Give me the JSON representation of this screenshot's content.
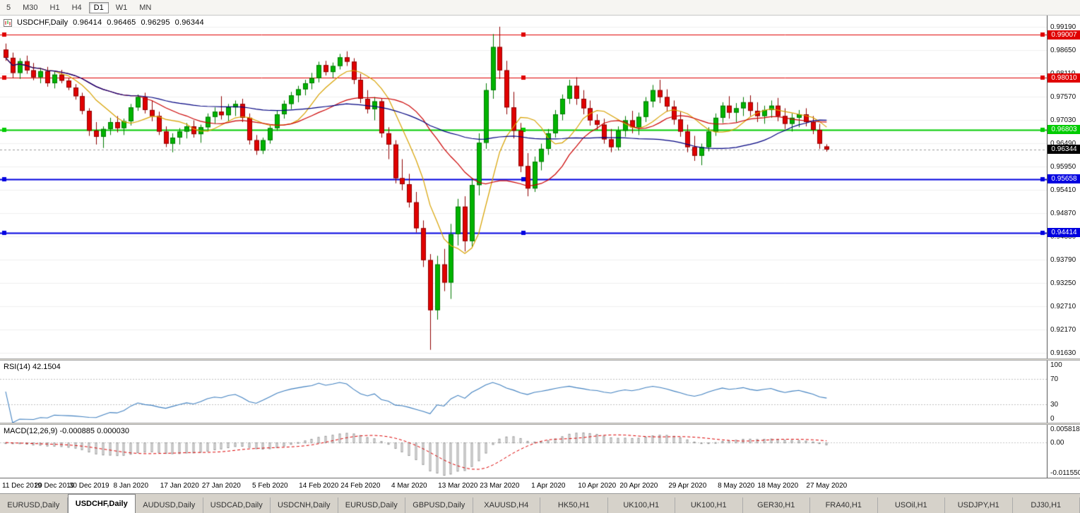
{
  "toolbar": {
    "timeframes": [
      "5",
      "M30",
      "H1",
      "H4",
      "D1",
      "W1",
      "MN"
    ],
    "active_timeframe": "D1"
  },
  "chart": {
    "symbol_title": "USDCHF,Daily",
    "ohlc": {
      "open": "0.96414",
      "high": "0.96465",
      "low": "0.96295",
      "close": "0.96344"
    }
  },
  "price_axis": {
    "ticks": [
      "0.99190",
      "0.98650",
      "0.98110",
      "0.97570",
      "0.97030",
      "0.96490",
      "0.95950",
      "0.95410",
      "0.94870",
      "0.94330",
      "0.93790",
      "0.93250",
      "0.92710",
      "0.92170",
      "0.91630"
    ]
  },
  "levels": {
    "lines": [
      {
        "price": 0.99007,
        "label": "0.99007",
        "color": "#e00000",
        "width": 1
      },
      {
        "price": 0.9801,
        "label": "0.98010",
        "color": "#e00000",
        "width": 1
      },
      {
        "price": 0.96803,
        "label": "0.96803",
        "color": "#00cc00",
        "width": 2
      },
      {
        "price": 0.95658,
        "label": "0.95658",
        "color": "#0000e0",
        "width": 2
      },
      {
        "price": 0.94414,
        "label": "0.94414",
        "color": "#0000e0",
        "width": 2
      }
    ],
    "current": {
      "price": 0.96344,
      "label": "0.96344",
      "color": "#000000"
    }
  },
  "rsi_panel": {
    "label": "RSI(14) 42.1504",
    "period": 14,
    "levels": [
      70,
      30
    ],
    "axis": [
      "100",
      "70",
      "30",
      "0"
    ],
    "line_color": "#4080c0"
  },
  "macd_panel": {
    "label": "MACD(12,26,9) -0.000885 0.000030",
    "fast": 12,
    "slow": 26,
    "signal": 9,
    "axis_top": "0.005818",
    "axis_zero": "0.00",
    "axis_bottom": "-0.011550",
    "scale_max": 0.005818,
    "scale_min": -0.01155,
    "hist_color": "#949494",
    "signal_color": "#dd0000"
  },
  "time_axis": {
    "labels": [
      {
        "text": "11 Dec 2019",
        "index": 0
      },
      {
        "text": "20 Dec 2019",
        "index": 7
      },
      {
        "text": "30 Dec 2019",
        "index": 12
      },
      {
        "text": "8 Jan 2020",
        "index": 18
      },
      {
        "text": "17 Jan 2020",
        "index": 25
      },
      {
        "text": "27 Jan 2020",
        "index": 31
      },
      {
        "text": "5 Feb 2020",
        "index": 38
      },
      {
        "text": "14 Feb 2020",
        "index": 45
      },
      {
        "text": "24 Feb 2020",
        "index": 51
      },
      {
        "text": "4 Mar 2020",
        "index": 58
      },
      {
        "text": "13 Mar 2020",
        "index": 65
      },
      {
        "text": "23 Mar 2020",
        "index": 71
      },
      {
        "text": "1 Apr 2020",
        "index": 78
      },
      {
        "text": "10 Apr 2020",
        "index": 85
      },
      {
        "text": "20 Apr 2020",
        "index": 91
      },
      {
        "text": "29 Apr 2020",
        "index": 98
      },
      {
        "text": "8 May 2020",
        "index": 105
      },
      {
        "text": "18 May 2020",
        "index": 111
      },
      {
        "text": "27 May 2020",
        "index": 118
      }
    ]
  },
  "tabs": {
    "items": [
      "EURUSD,Daily",
      "USDCHF,Daily",
      "AUDUSD,Daily",
      "USDCAD,Daily",
      "USDCNH,Daily",
      "EURUSD,Daily",
      "GBPUSD,Daily",
      "XAUUSD,H4",
      "HK50,H1",
      "UK100,H1",
      "UK100,H1",
      "GER30,H1",
      "FRA40,H1",
      "USOil,H1",
      "USDJPY,H1",
      "DJ30,H1"
    ],
    "active_index": 1
  },
  "colors": {
    "background": "#ffffff",
    "grid": "#efefef",
    "candle_up": "#00b300",
    "candle_up_edge": "#007a00",
    "candle_down": "#e10000",
    "candle_down_edge": "#8f0000",
    "current_price_line": "#9a9a9a",
    "rsi_level_line": "#c0c0c0"
  },
  "chart_data": {
    "type": "candlestick",
    "title": "USDCHF,Daily",
    "symbol": "USDCHF",
    "timeframe": "Daily",
    "x_start": 8,
    "x_step": 9.85,
    "y_range": [
      0.915,
      0.9945
    ],
    "moving_averages": [
      {
        "period": 8,
        "color": "#d8a200"
      },
      {
        "period": 20,
        "color": "#cc0000"
      },
      {
        "period": 50,
        "color": "#000080"
      }
    ],
    "candles": [
      [
        0.9866,
        0.988,
        0.984,
        0.9847
      ],
      [
        0.9847,
        0.9859,
        0.98,
        0.9812
      ],
      [
        0.9812,
        0.9846,
        0.9798,
        0.9839
      ],
      [
        0.9839,
        0.9852,
        0.981,
        0.9818
      ],
      [
        0.9818,
        0.9835,
        0.9795,
        0.9802
      ],
      [
        0.9802,
        0.9824,
        0.9788,
        0.9816
      ],
      [
        0.9816,
        0.9826,
        0.978,
        0.9788
      ],
      [
        0.9788,
        0.9815,
        0.9776,
        0.9808
      ],
      [
        0.9808,
        0.9819,
        0.9788,
        0.9794
      ],
      [
        0.9794,
        0.98,
        0.9772,
        0.9778
      ],
      [
        0.9778,
        0.9786,
        0.975,
        0.9758
      ],
      [
        0.9758,
        0.9766,
        0.9716,
        0.9724
      ],
      [
        0.9724,
        0.973,
        0.9666,
        0.9678
      ],
      [
        0.9678,
        0.9698,
        0.9646,
        0.9664
      ],
      [
        0.9664,
        0.9688,
        0.9638,
        0.9682
      ],
      [
        0.9682,
        0.9708,
        0.9668,
        0.9698
      ],
      [
        0.9698,
        0.9712,
        0.9674,
        0.9684
      ],
      [
        0.9684,
        0.9706,
        0.9668,
        0.97
      ],
      [
        0.97,
        0.974,
        0.969,
        0.9732
      ],
      [
        0.9732,
        0.9762,
        0.9724,
        0.9756
      ],
      [
        0.9756,
        0.9766,
        0.9718,
        0.9726
      ],
      [
        0.9726,
        0.9748,
        0.97,
        0.9712
      ],
      [
        0.9712,
        0.9722,
        0.9668,
        0.9676
      ],
      [
        0.9676,
        0.9688,
        0.964,
        0.9648
      ],
      [
        0.9648,
        0.9672,
        0.9628,
        0.9662
      ],
      [
        0.9662,
        0.9684,
        0.9646,
        0.9676
      ],
      [
        0.9676,
        0.9696,
        0.966,
        0.9688
      ],
      [
        0.9688,
        0.9702,
        0.9662,
        0.967
      ],
      [
        0.967,
        0.9692,
        0.965,
        0.9686
      ],
      [
        0.9686,
        0.9718,
        0.9676,
        0.971
      ],
      [
        0.971,
        0.9732,
        0.9694,
        0.9722
      ],
      [
        0.9722,
        0.9758,
        0.9704,
        0.9714
      ],
      [
        0.9714,
        0.974,
        0.97,
        0.9732
      ],
      [
        0.9732,
        0.9748,
        0.9712,
        0.974
      ],
      [
        0.974,
        0.9752,
        0.9698,
        0.9708
      ],
      [
        0.9708,
        0.9718,
        0.9646,
        0.9656
      ],
      [
        0.9656,
        0.9668,
        0.9622,
        0.9632
      ],
      [
        0.9632,
        0.9662,
        0.9624,
        0.9656
      ],
      [
        0.9656,
        0.9692,
        0.9648,
        0.9684
      ],
      [
        0.9684,
        0.9724,
        0.9678,
        0.9716
      ],
      [
        0.9716,
        0.9748,
        0.9706,
        0.974
      ],
      [
        0.974,
        0.9768,
        0.9728,
        0.976
      ],
      [
        0.976,
        0.9782,
        0.9744,
        0.9774
      ],
      [
        0.9774,
        0.9796,
        0.976,
        0.9788
      ],
      [
        0.9788,
        0.9812,
        0.9774,
        0.98
      ],
      [
        0.98,
        0.9838,
        0.979,
        0.983
      ],
      [
        0.983,
        0.984,
        0.9806,
        0.9814
      ],
      [
        0.9814,
        0.9836,
        0.98,
        0.9828
      ],
      [
        0.9828,
        0.9856,
        0.982,
        0.9848
      ],
      [
        0.9848,
        0.9862,
        0.9828,
        0.9838
      ],
      [
        0.9838,
        0.9846,
        0.9786,
        0.9796
      ],
      [
        0.9796,
        0.981,
        0.9742,
        0.9752
      ],
      [
        0.9752,
        0.9772,
        0.9718,
        0.9728
      ],
      [
        0.9728,
        0.9756,
        0.9702,
        0.9746
      ],
      [
        0.9746,
        0.9752,
        0.9662,
        0.9672
      ],
      [
        0.9672,
        0.9686,
        0.9612,
        0.9646
      ],
      [
        0.9646,
        0.9656,
        0.9556,
        0.9568
      ],
      [
        0.9568,
        0.9612,
        0.954,
        0.9554
      ],
      [
        0.9554,
        0.9578,
        0.95,
        0.9512
      ],
      [
        0.9512,
        0.9536,
        0.9442,
        0.9452
      ],
      [
        0.9452,
        0.947,
        0.9362,
        0.9378
      ],
      [
        0.9378,
        0.9392,
        0.917,
        0.9262
      ],
      [
        0.9262,
        0.9388,
        0.924,
        0.9368
      ],
      [
        0.9368,
        0.9404,
        0.9306,
        0.9326
      ],
      [
        0.9326,
        0.9462,
        0.9288,
        0.9438
      ],
      [
        0.9438,
        0.952,
        0.9412,
        0.9502
      ],
      [
        0.9502,
        0.9526,
        0.9398,
        0.9422
      ],
      [
        0.9422,
        0.9568,
        0.9408,
        0.9552
      ],
      [
        0.9552,
        0.9672,
        0.9528,
        0.965
      ],
      [
        0.965,
        0.9788,
        0.9636,
        0.9772
      ],
      [
        0.9772,
        0.9902,
        0.9752,
        0.9872
      ],
      [
        0.9872,
        0.9919,
        0.9798,
        0.9818
      ],
      [
        0.9818,
        0.984,
        0.9716,
        0.9732
      ],
      [
        0.9732,
        0.9768,
        0.966,
        0.9678
      ],
      [
        0.9678,
        0.9696,
        0.9582,
        0.9596
      ],
      [
        0.9596,
        0.9626,
        0.9526,
        0.9544
      ],
      [
        0.9544,
        0.9618,
        0.9536,
        0.9606
      ],
      [
        0.9606,
        0.9648,
        0.9586,
        0.9636
      ],
      [
        0.9636,
        0.9682,
        0.9622,
        0.9672
      ],
      [
        0.9672,
        0.9726,
        0.9662,
        0.9716
      ],
      [
        0.9716,
        0.9762,
        0.9702,
        0.9752
      ],
      [
        0.9752,
        0.9796,
        0.974,
        0.9782
      ],
      [
        0.9782,
        0.9802,
        0.9738,
        0.9752
      ],
      [
        0.9752,
        0.9772,
        0.9716,
        0.973
      ],
      [
        0.973,
        0.9748,
        0.969,
        0.9702
      ],
      [
        0.9702,
        0.9716,
        0.968,
        0.9692
      ],
      [
        0.9692,
        0.9706,
        0.9648,
        0.9658
      ],
      [
        0.9658,
        0.9682,
        0.9628,
        0.964
      ],
      [
        0.964,
        0.9688,
        0.9632,
        0.9678
      ],
      [
        0.9678,
        0.9712,
        0.9664,
        0.9702
      ],
      [
        0.9702,
        0.9724,
        0.9672,
        0.9686
      ],
      [
        0.9686,
        0.972,
        0.9668,
        0.971
      ],
      [
        0.971,
        0.9756,
        0.9698,
        0.9746
      ],
      [
        0.9746,
        0.9784,
        0.9732,
        0.9772
      ],
      [
        0.9772,
        0.9796,
        0.9742,
        0.9756
      ],
      [
        0.9756,
        0.9774,
        0.9722,
        0.9734
      ],
      [
        0.9734,
        0.9748,
        0.9692,
        0.9704
      ],
      [
        0.9704,
        0.9722,
        0.9664,
        0.9676
      ],
      [
        0.9676,
        0.9692,
        0.9628,
        0.964
      ],
      [
        0.964,
        0.9666,
        0.9608,
        0.962
      ],
      [
        0.962,
        0.9648,
        0.9598,
        0.964
      ],
      [
        0.964,
        0.9686,
        0.963,
        0.9676
      ],
      [
        0.9676,
        0.9718,
        0.9666,
        0.9708
      ],
      [
        0.9708,
        0.9744,
        0.9696,
        0.9736
      ],
      [
        0.9736,
        0.9758,
        0.9706,
        0.972
      ],
      [
        0.972,
        0.9742,
        0.9698,
        0.973
      ],
      [
        0.973,
        0.9756,
        0.9712,
        0.9744
      ],
      [
        0.9744,
        0.976,
        0.9712,
        0.9724
      ],
      [
        0.9724,
        0.9744,
        0.9698,
        0.9712
      ],
      [
        0.9712,
        0.9736,
        0.9694,
        0.9726
      ],
      [
        0.9726,
        0.9748,
        0.9708,
        0.9736
      ],
      [
        0.9736,
        0.9754,
        0.97,
        0.9712
      ],
      [
        0.9712,
        0.973,
        0.9682,
        0.9694
      ],
      [
        0.9694,
        0.9718,
        0.9676,
        0.9708
      ],
      [
        0.9708,
        0.9726,
        0.9686,
        0.9716
      ],
      [
        0.9716,
        0.973,
        0.9688,
        0.9698
      ],
      [
        0.9698,
        0.9712,
        0.967,
        0.968
      ],
      [
        0.968,
        0.9694,
        0.9636,
        0.9648
      ],
      [
        0.96414,
        0.96465,
        0.96295,
        0.96344
      ]
    ]
  }
}
